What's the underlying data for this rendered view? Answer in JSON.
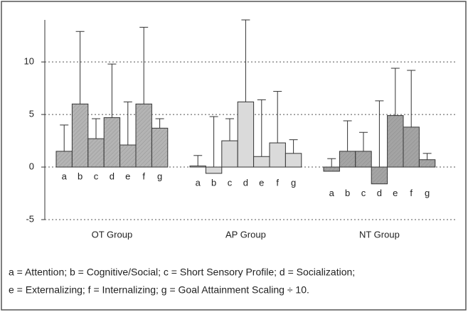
{
  "chart_data": {
    "type": "bar",
    "groups": [
      {
        "name": "OT Group",
        "color": "#b4b4b4",
        "categories": [
          "a",
          "b",
          "c",
          "d",
          "e",
          "f",
          "g"
        ],
        "values": [
          1.5,
          6.0,
          2.7,
          4.7,
          2.1,
          6.0,
          3.7
        ],
        "errors": [
          2.5,
          6.9,
          1.9,
          5.1,
          4.1,
          7.3,
          0.9
        ]
      },
      {
        "name": "AP Group",
        "color": "#dadada",
        "categories": [
          "a",
          "b",
          "c",
          "d",
          "e",
          "f",
          "g"
        ],
        "values": [
          0.1,
          -0.6,
          2.5,
          6.2,
          1.0,
          2.3,
          1.3
        ],
        "errors": [
          1.0,
          5.4,
          2.1,
          7.8,
          5.4,
          4.9,
          1.3
        ]
      },
      {
        "name": "NT Group",
        "color": "#a4a4a4",
        "categories": [
          "a",
          "b",
          "c",
          "d",
          "e",
          "f",
          "g"
        ],
        "values": [
          -0.4,
          1.5,
          1.5,
          -1.6,
          4.9,
          3.8,
          0.7
        ],
        "errors": [
          1.2,
          2.9,
          1.8,
          7.9,
          4.5,
          5.4,
          0.6
        ]
      }
    ],
    "ylim": [
      -5,
      14
    ],
    "yticks": [
      -5,
      0,
      5,
      10
    ],
    "grid": true,
    "note": [
      "a = Attention; b = Cognitive/Social; c = Short Sensory Profile; d = Socialization;",
      "e = Externalizing; f = Internalizing; g = Goal Attainment Scaling ÷ 10."
    ]
  }
}
